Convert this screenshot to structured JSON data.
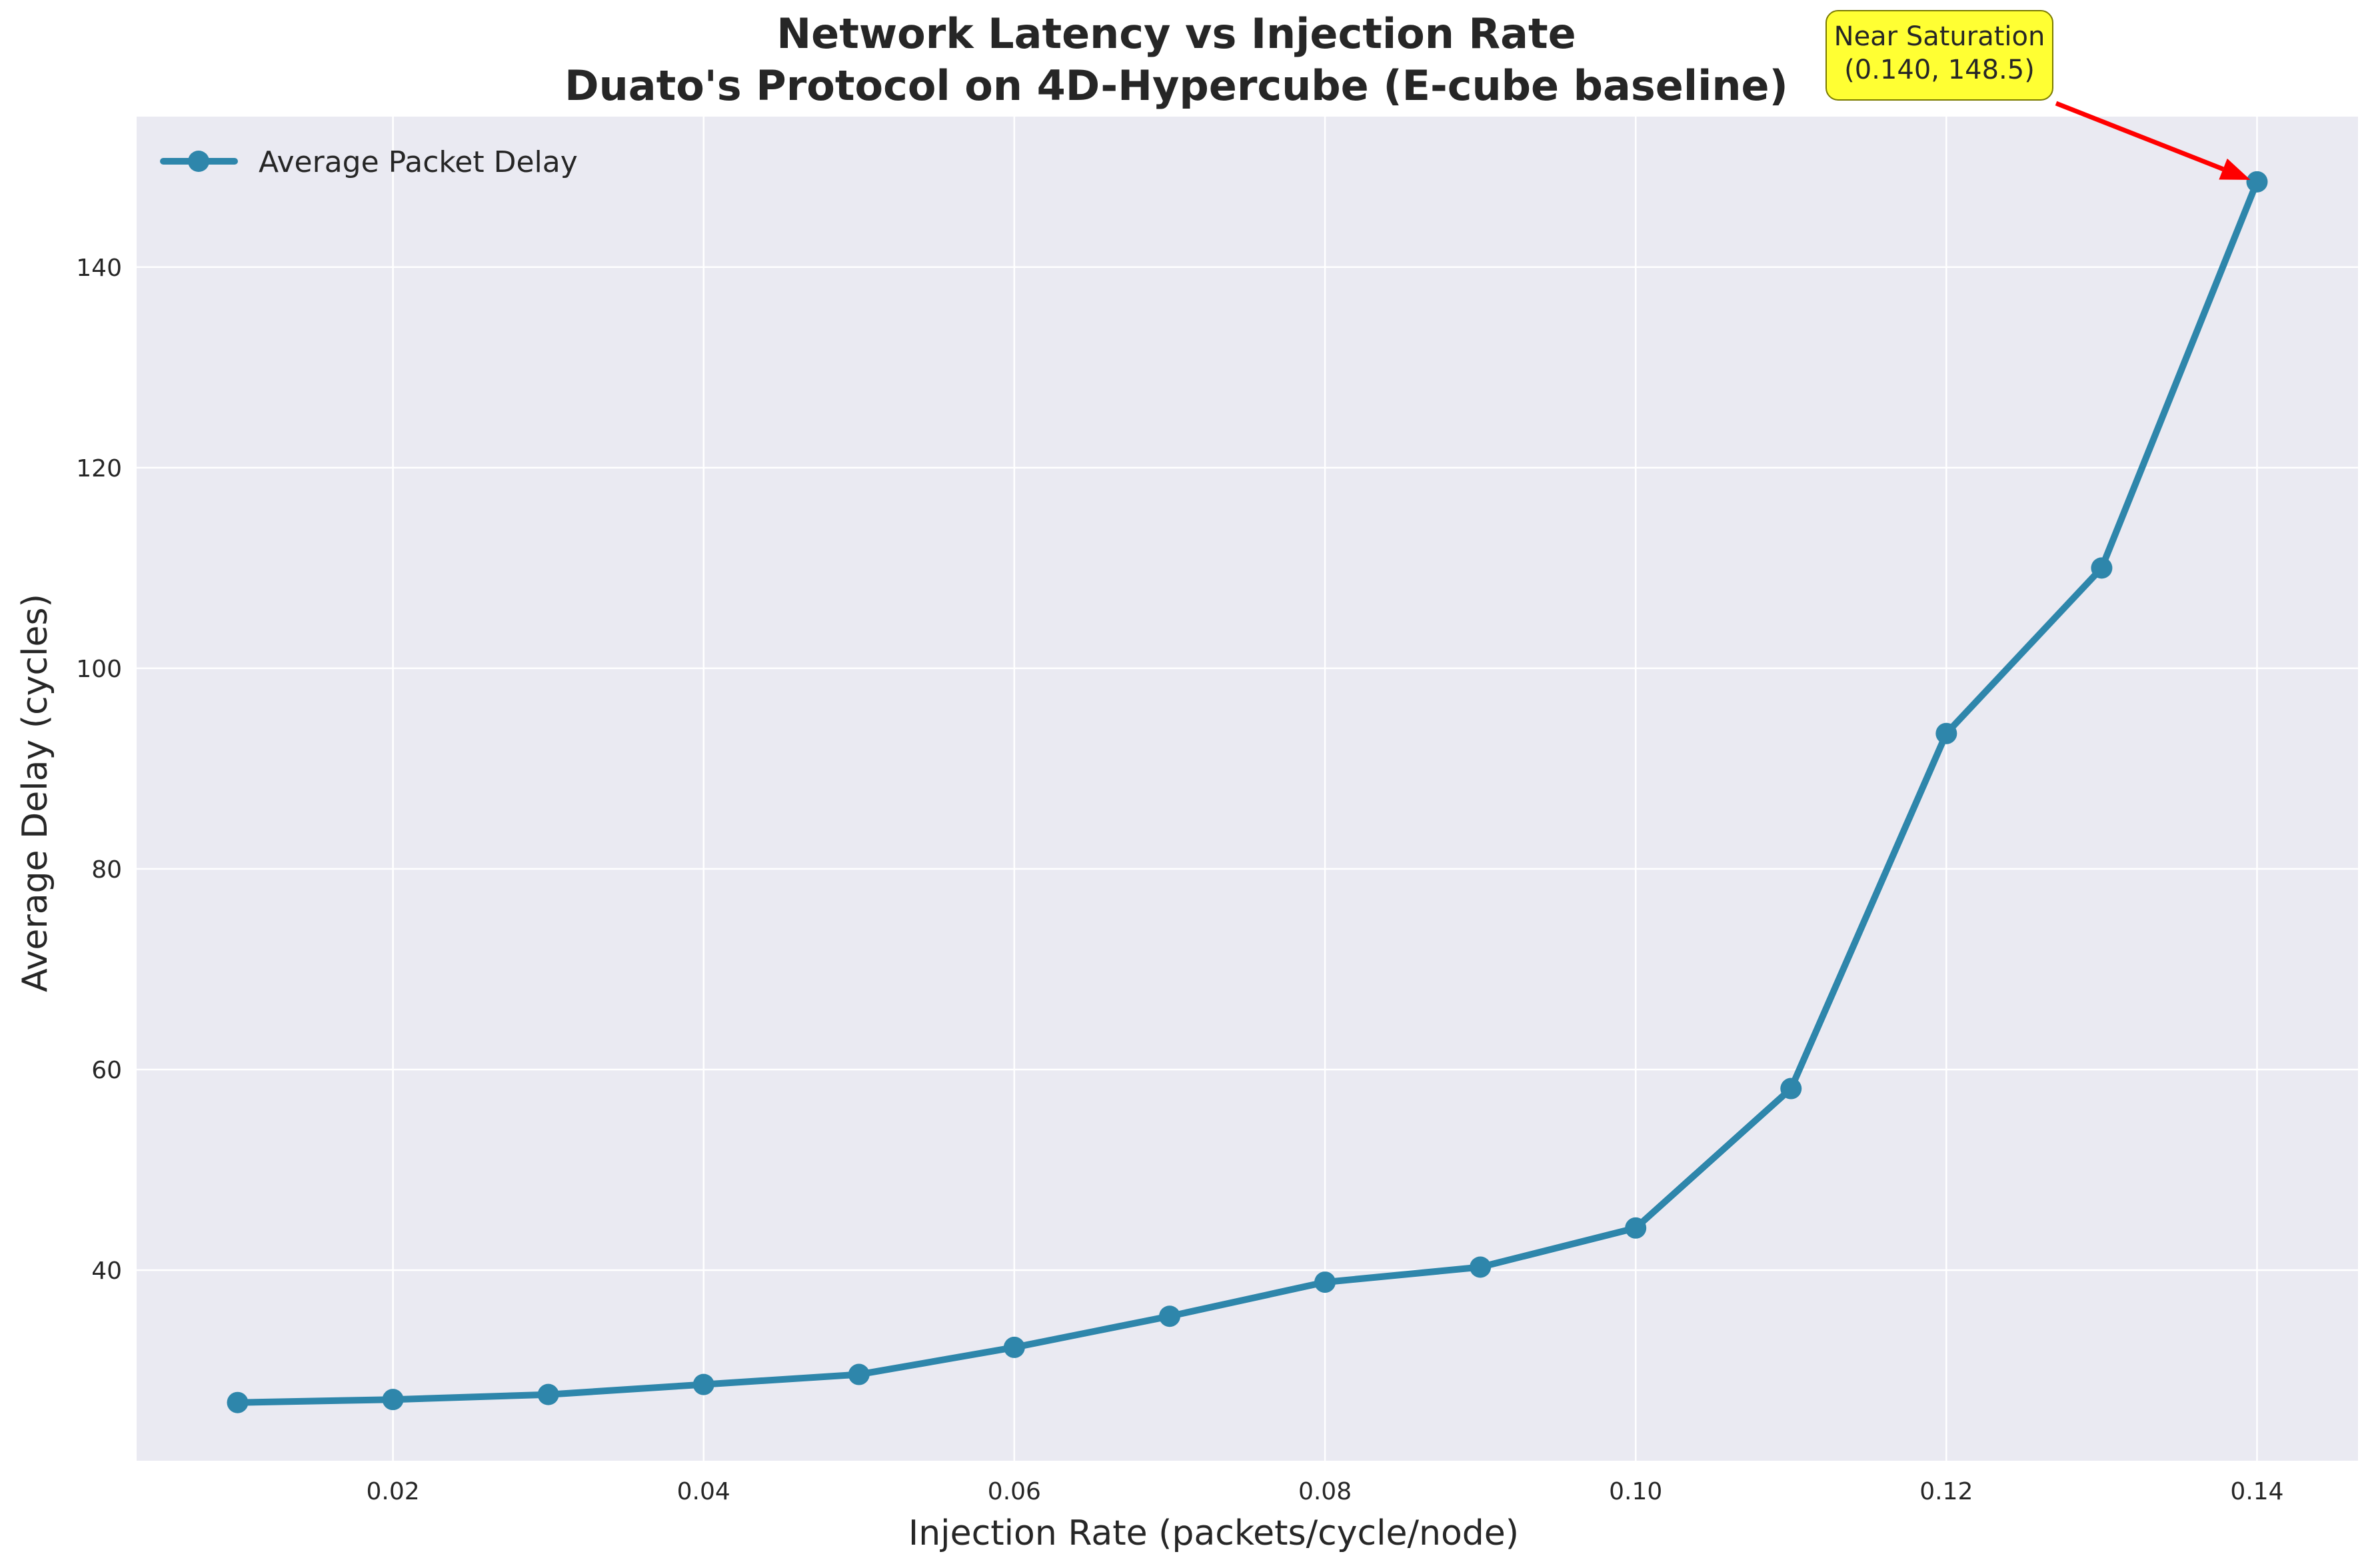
{
  "chart_data": {
    "type": "line",
    "title_lines": [
      "Network Latency vs Injection Rate",
      "Duato's Protocol on 4D-Hypercube (E-cube baseline)"
    ],
    "xlabel": "Injection Rate (packets/cycle/node)",
    "ylabel": "Average Delay (cycles)",
    "xlim": [
      0.0035,
      0.1465
    ],
    "ylim": [
      21.0,
      155.0
    ],
    "xticks": [
      0.02,
      0.04,
      0.06,
      0.08,
      0.1,
      0.12,
      0.14
    ],
    "xtick_labels": [
      "0.02",
      "0.04",
      "0.06",
      "0.08",
      "0.10",
      "0.12",
      "0.14"
    ],
    "yticks": [
      40,
      60,
      80,
      100,
      120,
      140
    ],
    "ytick_labels": [
      "40",
      "60",
      "80",
      "100",
      "120",
      "140"
    ],
    "grid": true,
    "legend_position": "top-left",
    "series": [
      {
        "name": "Average Packet Delay",
        "color": "#2e86ab",
        "marker": "circle",
        "x": [
          0.01,
          0.02,
          0.03,
          0.04,
          0.05,
          0.06,
          0.07,
          0.08,
          0.09,
          0.1,
          0.11,
          0.12,
          0.13,
          0.14
        ],
        "y": [
          26.8,
          27.1,
          27.6,
          28.6,
          29.6,
          32.3,
          35.4,
          38.8,
          40.3,
          44.2,
          58.1,
          93.5,
          110.0,
          148.5
        ]
      }
    ],
    "annotation": {
      "lines": [
        "Near Saturation",
        "(0.140, 148.5)"
      ],
      "point": [
        0.14,
        148.5
      ],
      "box_color": "#ffff33",
      "arrow_color": "#ff0000"
    },
    "colors": {
      "plot_background": "#eaeaf2",
      "grid": "#ffffff",
      "text": "#262626"
    }
  }
}
